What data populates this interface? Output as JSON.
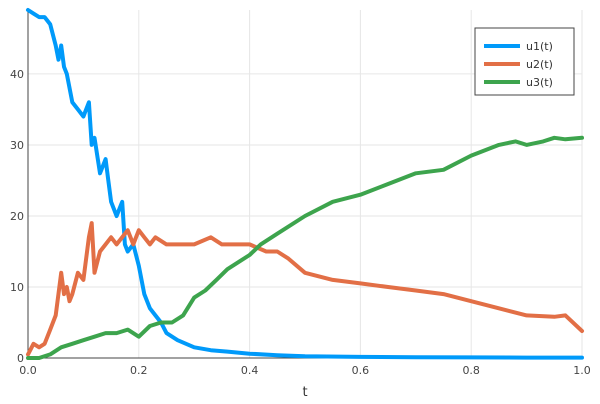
{
  "chart_data": {
    "type": "line",
    "xlabel": "t",
    "ylabel": "",
    "xlim": [
      0,
      1
    ],
    "ylim": [
      0,
      49
    ],
    "xticks": [
      0,
      0.2,
      0.4,
      0.6,
      0.8,
      1
    ],
    "xtick_labels": [
      "0.0",
      "0.2",
      "0.4",
      "0.6",
      "0.8",
      "1.0"
    ],
    "yticks": [
      0,
      10,
      20,
      30,
      40
    ],
    "ytick_labels": [
      "0",
      "10",
      "20",
      "30",
      "40"
    ],
    "grid": true,
    "legend_position": "top-right",
    "series": [
      {
        "name": "u1(t)",
        "color": "#009AFA",
        "x": [
          0,
          0.01,
          0.02,
          0.03,
          0.04,
          0.05,
          0.055,
          0.06,
          0.065,
          0.07,
          0.08,
          0.09,
          0.1,
          0.11,
          0.115,
          0.12,
          0.13,
          0.14,
          0.145,
          0.15,
          0.16,
          0.17,
          0.175,
          0.18,
          0.19,
          0.2,
          0.21,
          0.22,
          0.23,
          0.24,
          0.25,
          0.27,
          0.3,
          0.33,
          0.36,
          0.4,
          0.45,
          0.5,
          0.6,
          0.7,
          0.8,
          0.9,
          1.0
        ],
        "y": [
          49,
          48.5,
          48,
          48,
          47,
          44,
          42,
          44,
          41,
          40,
          36,
          35,
          34,
          36,
          30,
          31,
          26,
          28,
          25,
          22,
          20,
          22,
          16,
          15,
          16,
          13,
          9,
          7,
          6,
          5,
          3.5,
          2.5,
          1.5,
          1.1,
          0.9,
          0.6,
          0.4,
          0.25,
          0.15,
          0.1,
          0.08,
          0.05,
          0.05
        ]
      },
      {
        "name": "u2(t)",
        "color": "#E26F46",
        "x": [
          0,
          0.01,
          0.02,
          0.03,
          0.04,
          0.05,
          0.06,
          0.065,
          0.07,
          0.075,
          0.08,
          0.09,
          0.1,
          0.11,
          0.115,
          0.12,
          0.13,
          0.14,
          0.15,
          0.16,
          0.17,
          0.18,
          0.19,
          0.2,
          0.21,
          0.22,
          0.23,
          0.25,
          0.27,
          0.3,
          0.33,
          0.35,
          0.37,
          0.4,
          0.43,
          0.45,
          0.47,
          0.5,
          0.55,
          0.6,
          0.65,
          0.7,
          0.75,
          0.8,
          0.85,
          0.9,
          0.95,
          0.97,
          1.0
        ],
        "y": [
          0.5,
          2,
          1.5,
          2,
          4,
          6,
          12,
          9,
          10,
          8,
          9,
          12,
          11,
          17,
          19,
          12,
          15,
          16,
          17,
          16,
          17,
          18,
          16,
          18,
          17,
          16,
          17,
          16,
          16,
          16,
          17,
          16,
          16,
          16,
          15,
          15,
          14,
          12,
          11,
          10.5,
          10,
          9.5,
          9,
          8,
          7,
          6,
          5.8,
          6,
          3.8
        ]
      },
      {
        "name": "u3(t)",
        "color": "#3DA44D",
        "x": [
          0,
          0.02,
          0.04,
          0.06,
          0.08,
          0.1,
          0.12,
          0.14,
          0.16,
          0.18,
          0.2,
          0.22,
          0.24,
          0.26,
          0.28,
          0.3,
          0.32,
          0.34,
          0.36,
          0.38,
          0.4,
          0.42,
          0.45,
          0.5,
          0.55,
          0.6,
          0.65,
          0.7,
          0.75,
          0.8,
          0.85,
          0.88,
          0.9,
          0.93,
          0.95,
          0.97,
          1.0
        ],
        "y": [
          0,
          0,
          0.5,
          1.5,
          2,
          2.5,
          3,
          3.5,
          3.5,
          4,
          3,
          4.5,
          5,
          5,
          6,
          8.5,
          9.5,
          11,
          12.5,
          13.5,
          14.5,
          16,
          17.5,
          20,
          22,
          23,
          24.5,
          26,
          26.5,
          28.5,
          30,
          30.5,
          30,
          30.5,
          31,
          30.8,
          31
        ]
      }
    ]
  }
}
